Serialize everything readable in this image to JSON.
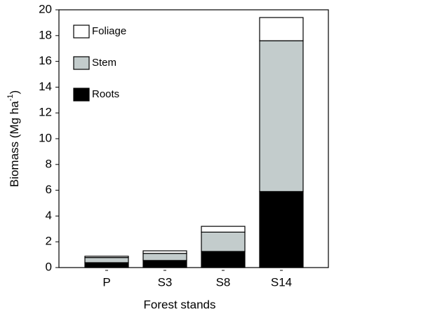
{
  "chart_data": {
    "type": "stacked-bar",
    "y_label": {
      "text": "Biomass (Mg ha",
      "superscript": "-1",
      "closing": ")"
    },
    "x_label": "Forest stands",
    "categories": [
      "P",
      "S3",
      "S8",
      "S14"
    ],
    "series": [
      {
        "name": "Foliage",
        "color": "#ffffff",
        "values": [
          0.1,
          0.2,
          0.45,
          1.8
        ]
      },
      {
        "name": "Stem",
        "color": "#c3cccc",
        "values": [
          0.4,
          0.55,
          1.5,
          11.7
        ]
      },
      {
        "name": "Roots",
        "color": "#000000",
        "values": [
          0.38,
          0.55,
          1.25,
          5.9
        ]
      }
    ],
    "ylim": [
      0,
      20
    ],
    "yticks": [
      0,
      2,
      4,
      6,
      8,
      10,
      12,
      14,
      16,
      18,
      20
    ]
  }
}
